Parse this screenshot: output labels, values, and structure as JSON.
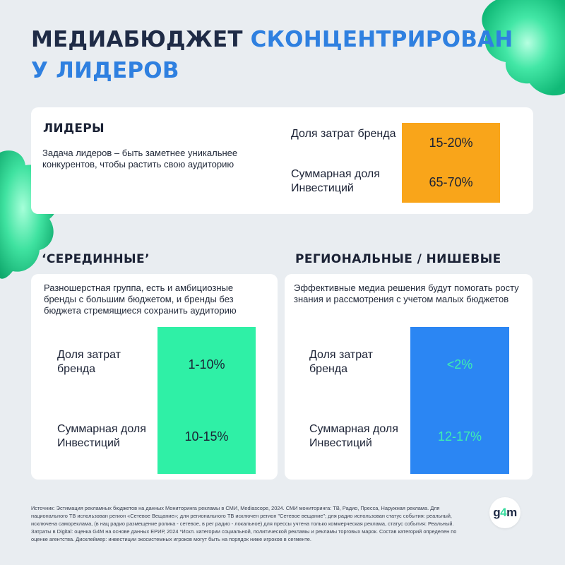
{
  "title": {
    "line1_dark": "МЕДИАБЮДЖЕТ",
    "line1_accent": "СКОНЦЕНТРИРОВАН",
    "line2_accent": "У ЛИДЕРОВ"
  },
  "leaders": {
    "heading": "ЛИДЕРЫ",
    "description": "Задача лидеров – быть заметнее уникальнее конкурентов, чтобы растить свою аудиторию",
    "brand_share_label": "Доля затрат бренда",
    "brand_share_value": "15-20%",
    "total_share_label": "Суммарная доля Инвестиций",
    "total_share_value": "65-70%",
    "color": "#f9a51a"
  },
  "middle": {
    "heading": "‘СЕРЕДИННЫЕ’",
    "description": "Разношерстная группа, есть и амбициозные бренды с большим бюджетом, и бренды без бюджета стремящиеся сохранить аудиторию",
    "brand_share_label": "Доля затрат бренда",
    "brand_share_value": "1-10%",
    "total_share_label": "Суммарная доля Инвестиций",
    "total_share_value": "10-15%",
    "color": "#2ff0a6"
  },
  "regional": {
    "heading": "РЕГИОНАЛЬНЫЕ / НИШЕВЫЕ",
    "description": "Эффективные медиа решения будут помогать росту знания и рассмотрения с учетом малых бюджетов",
    "brand_share_label": "Доля затрат бренда",
    "brand_share_value": "<2%",
    "total_share_label": "Суммарная доля Инвестиций",
    "total_share_value": "12-17%",
    "color": "#2b86f3",
    "value_color": "#3ef0b0"
  },
  "footnote": "Источник: Эстимация рекламных бюджетов на данных Мониторинга рекламы в СМИ, Mediascope, 2024. СМИ мониторинга: ТВ, Радио, Пресса, Наружная реклама. Для национального ТВ использован регион «Сетевое Вещание»; для регионального ТВ исключен регион \"Сетевое вещание\"; для радио использован статус события: реальный, исключена самореклама, (в нац радио размещение ролика - сетевое, в рег радио - локальное) для прессы учтена только коммерческая реклама, статус события: Реальный. Затраты в Digital: оценка G4M на основе данных ЕРИР, 2024 *Искл. категории социальной, политической рекламы и рекламы торговых марок. Состав категорий определен по оценке агентства. Дисклеймер: инвестиции экосистемных игроков могут быть на порядок ниже игроков в сегменте.",
  "logo": {
    "text_g": "g",
    "text_4": "4",
    "text_m": "m"
  }
}
